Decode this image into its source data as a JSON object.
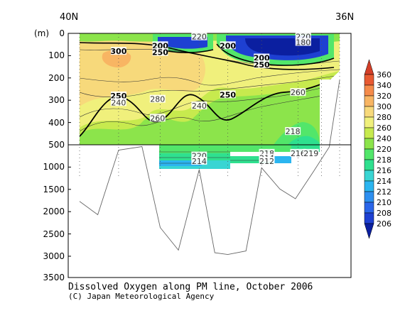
{
  "chart_data": {
    "type": "heatmap",
    "title": "Dissolved Oxygen along PM line, October 2006",
    "credit": "(C) Japan Meteorological Agency",
    "x_left_label": "40N",
    "x_right_label": "36N",
    "y_unit_label": "(m)",
    "y_ticks_upper": [
      "0",
      "100",
      "200",
      "300",
      "400",
      "500"
    ],
    "y_ticks_lower": [
      "1000",
      "1500",
      "2000",
      "2500",
      "3000",
      "3500"
    ],
    "colorbar": {
      "ticks": [
        "206",
        "208",
        "210",
        "212",
        "214",
        "216",
        "218",
        "220",
        "240",
        "260",
        "280",
        "300",
        "320",
        "340",
        "360"
      ],
      "colors": [
        "#0b1fa0",
        "#1e40d2",
        "#2a66ea",
        "#2d8ff0",
        "#2bb5f0",
        "#39d5d3",
        "#2fe08f",
        "#52e66a",
        "#8ce44b",
        "#c7ea4e",
        "#f0f07c",
        "#f7d97b",
        "#f8b563",
        "#f58b4a",
        "#e85a32",
        "#d43f28"
      ]
    },
    "contour_labels": [
      {
        "text": "220",
        "x": 0.46,
        "y": 15,
        "strong": false
      },
      {
        "text": "220",
        "x": 0.86,
        "y": 15,
        "strong": false
      },
      {
        "text": "180",
        "x": 0.86,
        "y": 40,
        "strong": false
      },
      {
        "text": "200",
        "x": 0.31,
        "y": 55,
        "strong": true
      },
      {
        "text": "250",
        "x": 0.31,
        "y": 85,
        "strong": true
      },
      {
        "text": "200",
        "x": 0.57,
        "y": 55,
        "strong": true
      },
      {
        "text": "200",
        "x": 0.7,
        "y": 110,
        "strong": true
      },
      {
        "text": "250",
        "x": 0.7,
        "y": 140,
        "strong": true
      },
      {
        "text": "300",
        "x": 0.15,
        "y": 80,
        "strong": true
      },
      {
        "text": "250",
        "x": 0.15,
        "y": 280,
        "strong": true
      },
      {
        "text": "240",
        "x": 0.15,
        "y": 310,
        "strong": false
      },
      {
        "text": "280",
        "x": 0.3,
        "y": 295,
        "strong": false
      },
      {
        "text": "240",
        "x": 0.46,
        "y": 325,
        "strong": false
      },
      {
        "text": "250",
        "x": 0.57,
        "y": 275,
        "strong": true
      },
      {
        "text": "260",
        "x": 0.3,
        "y": 380,
        "strong": false
      },
      {
        "text": "260",
        "x": 0.84,
        "y": 265,
        "strong": false
      },
      {
        "text": "218",
        "x": 0.82,
        "y": 440,
        "strong": false
      },
      {
        "text": "220",
        "x": 0.46,
        "y": 750,
        "strong": false
      },
      {
        "text": "214",
        "x": 0.46,
        "y": 870,
        "strong": false
      },
      {
        "text": "218",
        "x": 0.72,
        "y": 690,
        "strong": false
      },
      {
        "text": "214",
        "x": 0.72,
        "y": 800,
        "strong": false
      },
      {
        "text": "212",
        "x": 0.72,
        "y": 870,
        "strong": false
      },
      {
        "text": "216",
        "x": 0.84,
        "y": 690,
        "strong": false
      },
      {
        "text": "219",
        "x": 0.89,
        "y": 690,
        "strong": false
      }
    ],
    "bottom_topography": [
      {
        "x": 0.0,
        "depth": 1780
      },
      {
        "x": 0.07,
        "depth": 2080
      },
      {
        "x": 0.15,
        "depth": 620
      },
      {
        "x": 0.24,
        "depth": 540
      },
      {
        "x": 0.31,
        "depth": 2370
      },
      {
        "x": 0.38,
        "depth": 2880
      },
      {
        "x": 0.46,
        "depth": 1060
      },
      {
        "x": 0.52,
        "depth": 2940
      },
      {
        "x": 0.57,
        "depth": 2980
      },
      {
        "x": 0.64,
        "depth": 2900
      },
      {
        "x": 0.7,
        "depth": 1020
      },
      {
        "x": 0.77,
        "depth": 1500
      },
      {
        "x": 0.83,
        "depth": 1720
      },
      {
        "x": 0.9,
        "depth": 1100
      },
      {
        "x": 0.96,
        "depth": 550
      },
      {
        "x": 1.0,
        "depth": 210
      }
    ]
  }
}
